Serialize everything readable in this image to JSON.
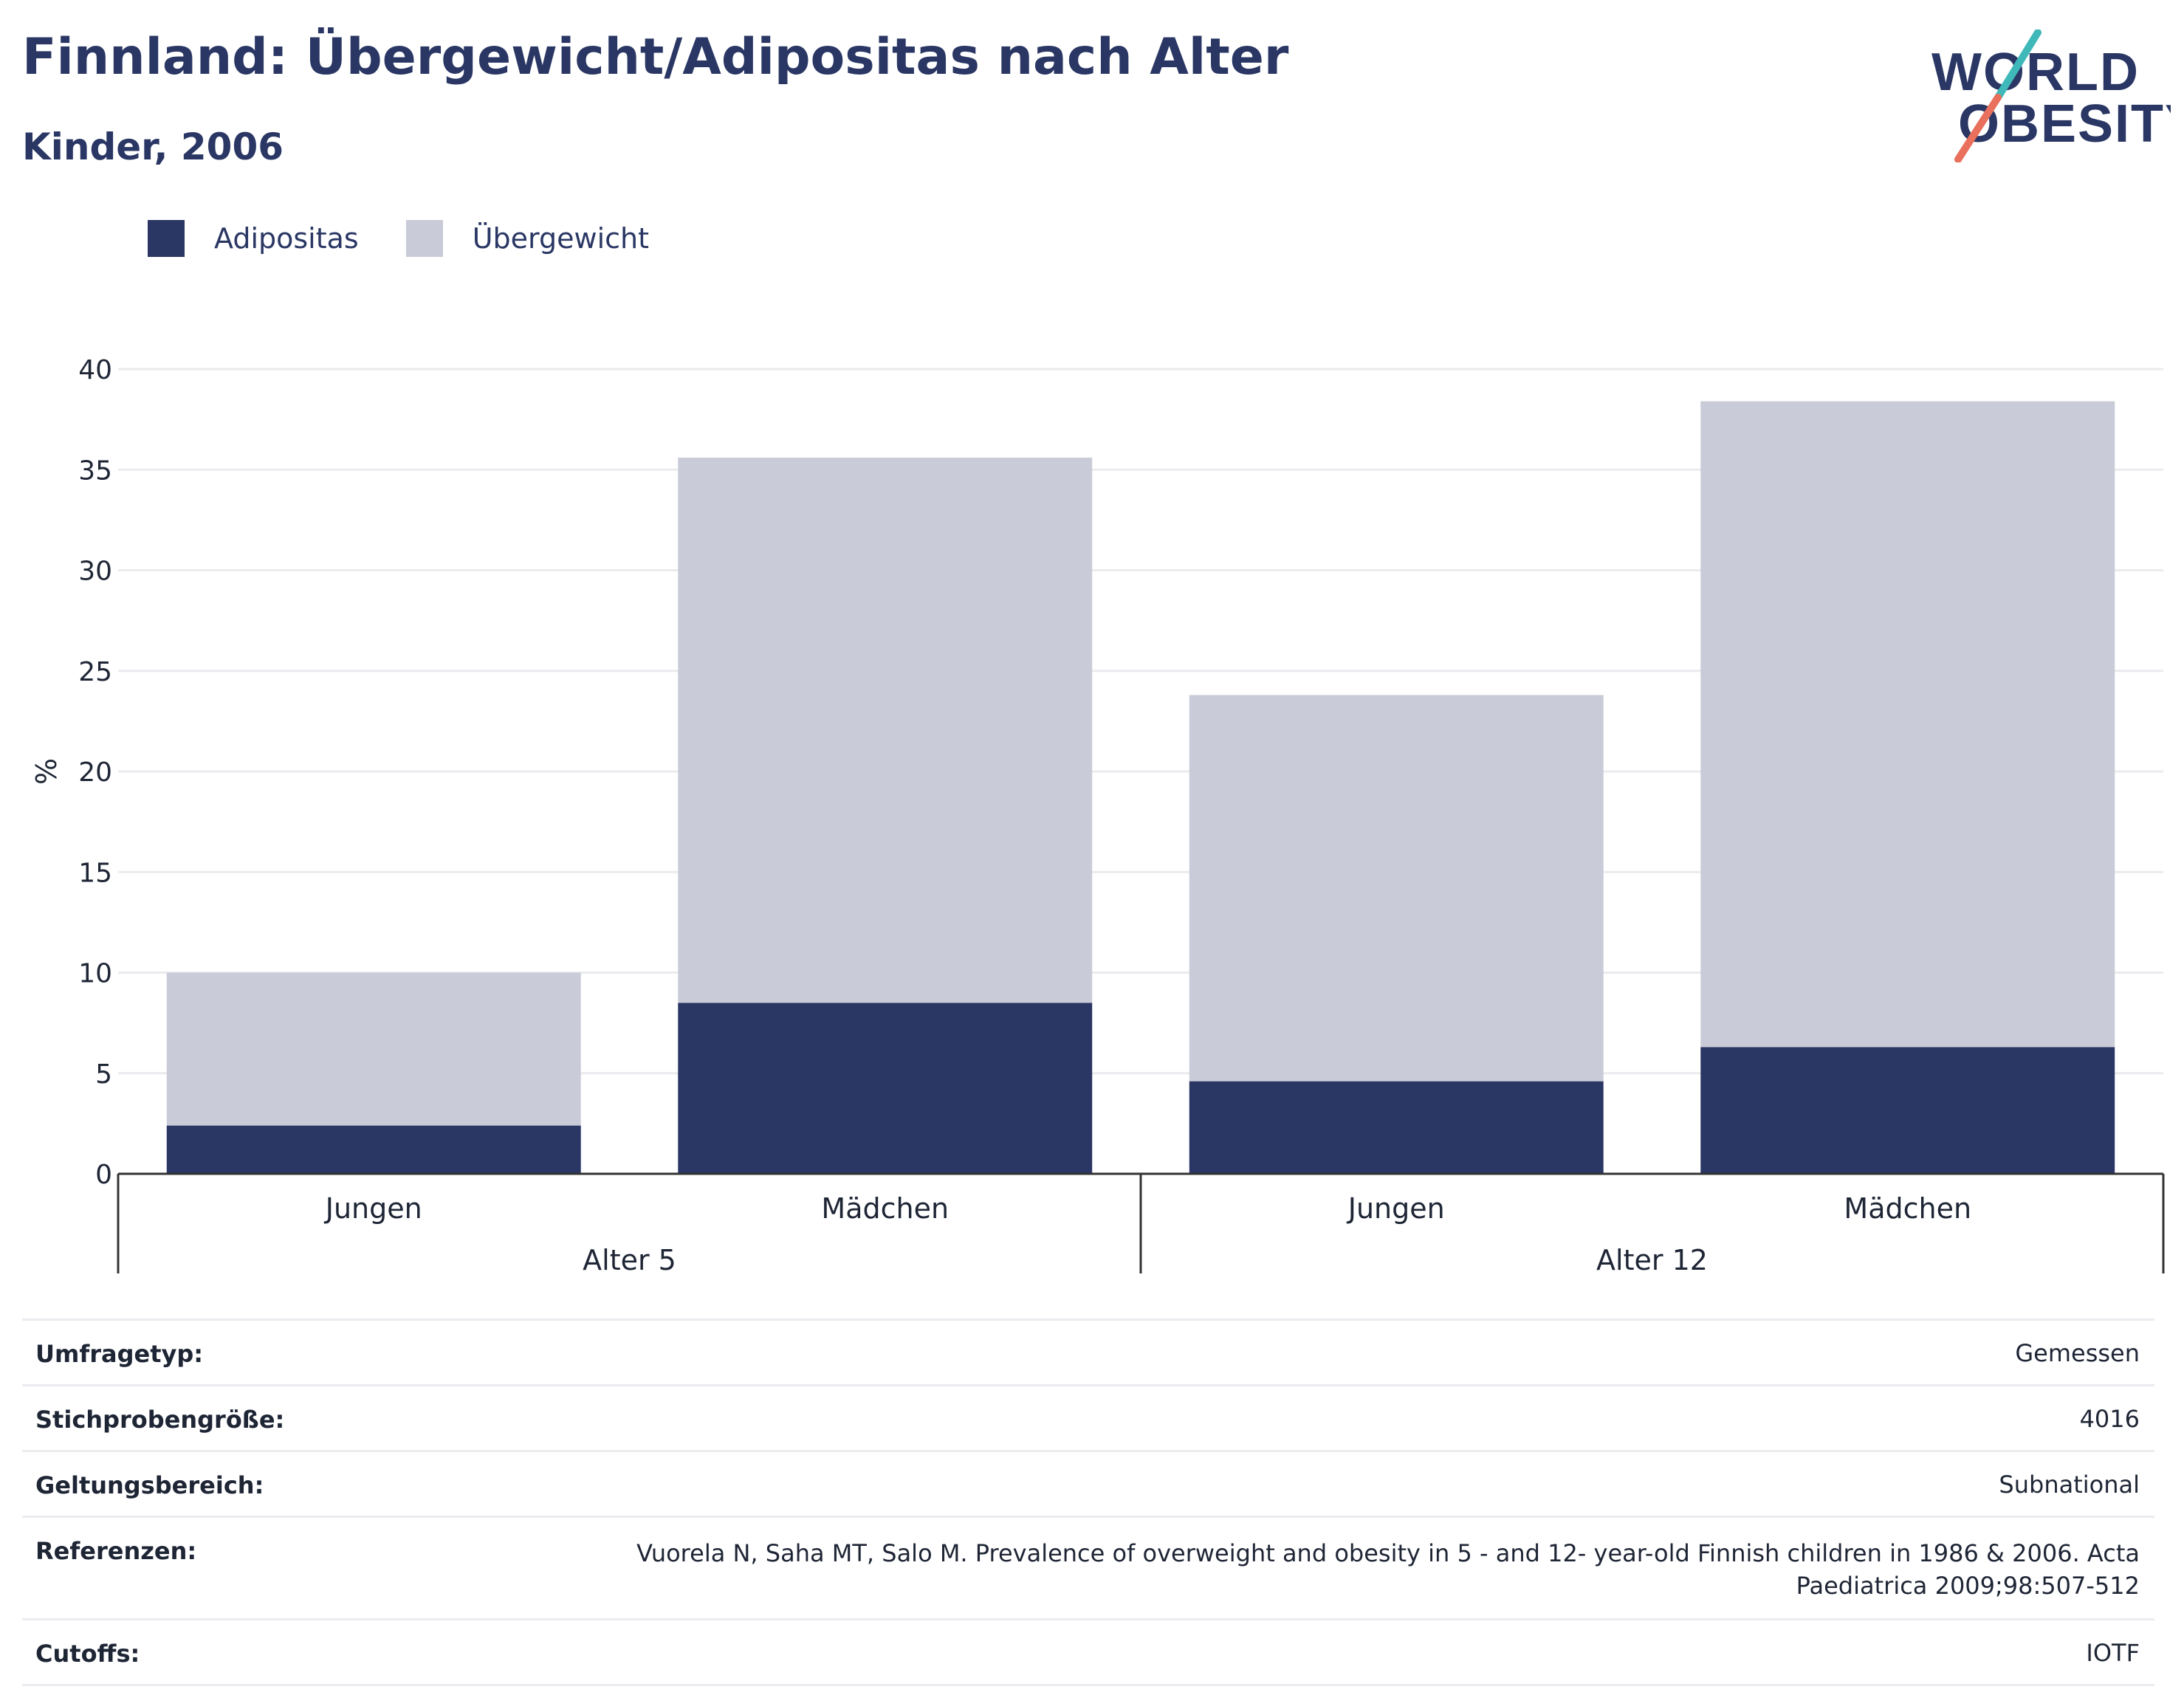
{
  "header": {
    "title": "Finnland: Übergewicht/Adipositas nach Alter",
    "subtitle": "Kinder, 2006"
  },
  "logo": {
    "line1": "WORLD",
    "line2": "OBESITY",
    "accent_teal": "#3fb8b9",
    "accent_coral": "#e8705c"
  },
  "legend": [
    {
      "label": "Adipositas",
      "color": "#2a3664"
    },
    {
      "label": "Übergewicht",
      "color": "#c9ccd8"
    }
  ],
  "chart_data": {
    "type": "bar",
    "stacked": true,
    "ylabel": "%",
    "ylim": [
      0,
      40
    ],
    "yticks": [
      0,
      5,
      10,
      15,
      20,
      25,
      30,
      35,
      40
    ],
    "grid": true,
    "legend_position": "top-left",
    "categories": [
      "Jungen",
      "Mädchen",
      "Jungen",
      "Mädchen"
    ],
    "groups": [
      {
        "label": "Alter 5",
        "categories": [
          "Jungen",
          "Mädchen"
        ]
      },
      {
        "label": "Alter 12",
        "categories": [
          "Jungen",
          "Mädchen"
        ]
      }
    ],
    "series": [
      {
        "name": "Adipositas",
        "color": "#2a3664",
        "values": [
          2.4,
          8.5,
          4.6,
          6.3
        ]
      },
      {
        "name": "Übergewicht",
        "color": "#c9ccd8",
        "values": [
          7.6,
          27.1,
          19.2,
          32.1
        ]
      }
    ]
  },
  "meta": [
    {
      "label": "Umfragetyp:",
      "value": "Gemessen"
    },
    {
      "label": "Stichprobengröße:",
      "value": "4016"
    },
    {
      "label": "Geltungsbereich:",
      "value": "Subnational"
    },
    {
      "label": "Referenzen:",
      "value": "Vuorela N, Saha MT, Salo M. Prevalence of overweight and obesity in 5 - and 12- year-old Finnish children in 1986 & 2006. Acta Paediatrica 2009;98:507-512"
    },
    {
      "label": "Cutoffs:",
      "value": "IOTF"
    }
  ]
}
